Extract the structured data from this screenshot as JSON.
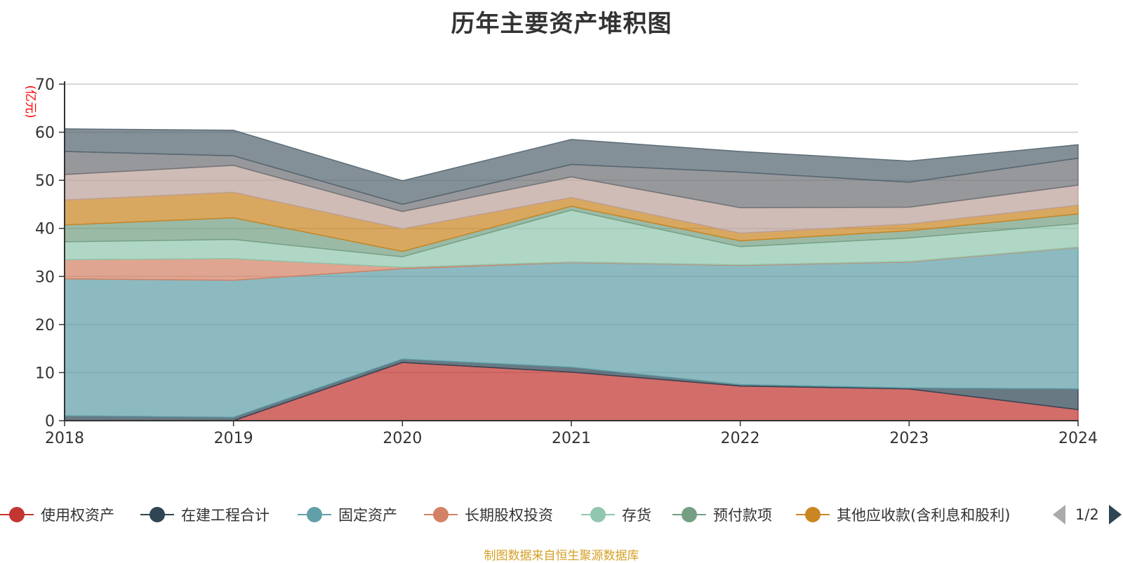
{
  "chart_data": {
    "type": "area",
    "stacked": true,
    "title": "历年主要资产堆积图",
    "ylabel": "(亿元)",
    "xlabel": "",
    "x": [
      "2018",
      "2019",
      "2020",
      "2021",
      "2022",
      "2023",
      "2024"
    ],
    "ylim": [
      0,
      70
    ],
    "yticks": [
      0,
      10,
      20,
      30,
      40,
      50,
      60,
      70
    ],
    "grid": true,
    "legend_position": "bottom",
    "series": [
      {
        "name": "使用权资产",
        "color": "#c23531",
        "values": [
          0,
          0,
          12.1,
          10.1,
          7.2,
          6.6,
          2.3
        ]
      },
      {
        "name": "在建工程合计",
        "color": "#2f4554",
        "values": [
          1.0,
          0.7,
          0.7,
          1.0,
          0.3,
          0.2,
          4.3
        ]
      },
      {
        "name": "固定资产",
        "color": "#61a0a8",
        "values": [
          28.5,
          28.5,
          18.8,
          21.8,
          24.8,
          26.2,
          29.4
        ]
      },
      {
        "name": "长期股权投资",
        "color": "#d48265",
        "values": [
          4.0,
          4.5,
          0.3,
          0.1,
          0.1,
          0.1,
          0.1
        ]
      },
      {
        "name": "存货",
        "color": "#91c7ae",
        "values": [
          3.7,
          4.0,
          2.2,
          10.8,
          3.8,
          4.9,
          4.9
        ]
      },
      {
        "name": "预付款项",
        "color": "#749f83",
        "values": [
          3.5,
          4.5,
          1.1,
          0.8,
          1.2,
          1.5,
          2.0
        ]
      },
      {
        "name": "其他应收款(含利息和股利)",
        "color": "#ca8622",
        "values": [
          5.2,
          5.3,
          4.7,
          1.8,
          1.6,
          1.4,
          1.8
        ]
      },
      {
        "name": "",
        "color": "#bda29a",
        "values": [
          5.3,
          5.6,
          3.6,
          4.3,
          5.3,
          3.5,
          4.2
        ]
      },
      {
        "name": "",
        "color": "#6e7074",
        "values": [
          4.8,
          2.0,
          1.5,
          2.6,
          7.4,
          5.2,
          5.6
        ]
      },
      {
        "name": "",
        "color": "#546570",
        "values": [
          4.7,
          5.3,
          4.9,
          5.2,
          4.3,
          4.4,
          2.8
        ]
      }
    ]
  },
  "legend": {
    "items": [
      {
        "label": "使用权资产",
        "color": "#c23531"
      },
      {
        "label": "在建工程合计",
        "color": "#2f4554"
      },
      {
        "label": "固定资产",
        "color": "#61a0a8"
      },
      {
        "label": "长期股权投资",
        "color": "#d48265"
      },
      {
        "label": "存货",
        "color": "#91c7ae"
      },
      {
        "label": "预付款项",
        "color": "#749f83"
      },
      {
        "label": "其他应收款(含利息和股利)",
        "color": "#ca8622"
      }
    ],
    "page": "1/2"
  },
  "source": "制图数据来自恒生聚源数据库",
  "colors": {
    "unit_label": "#ff0000",
    "source_text": "#d4a027"
  }
}
